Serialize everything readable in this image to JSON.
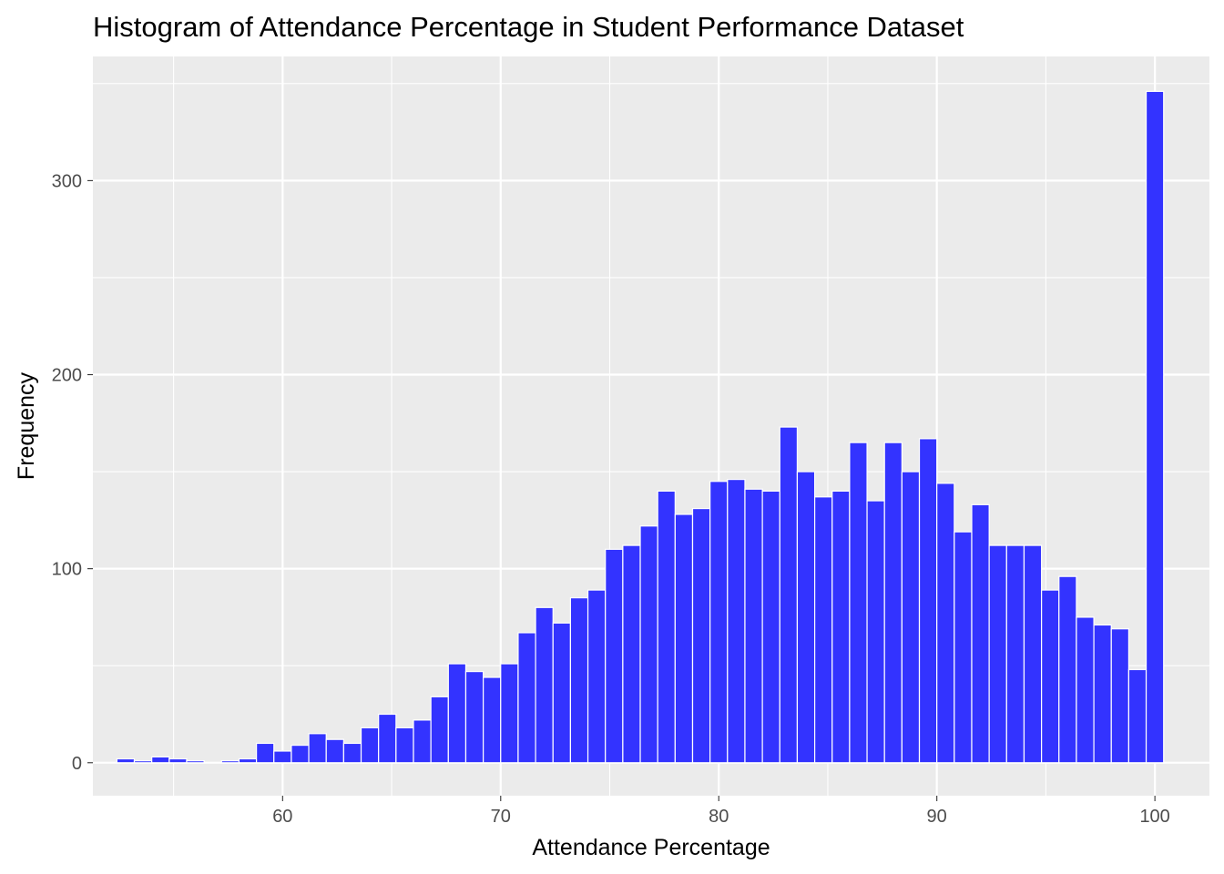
{
  "chart_data": {
    "type": "bar",
    "title": "Histogram of Attendance Percentage in Student Performance Dataset",
    "xlabel": "Attendance Percentage",
    "ylabel": "Frequency",
    "xlim": [
      51.3,
      102.5
    ],
    "ylim": [
      -17,
      364
    ],
    "x_ticks": [
      60,
      70,
      80,
      90,
      100
    ],
    "y_ticks": [
      0,
      100,
      200,
      300
    ],
    "bin_width": 0.8,
    "bin_centers": [
      52.8,
      53.6,
      54.4,
      55.2,
      56.0,
      56.8,
      57.6,
      58.4,
      59.2,
      60.0,
      60.8,
      61.6,
      62.4,
      63.2,
      64.0,
      64.8,
      65.6,
      66.4,
      67.2,
      68.0,
      68.8,
      69.6,
      70.4,
      71.2,
      72.0,
      72.8,
      73.6,
      74.4,
      75.2,
      76.0,
      76.8,
      77.6,
      78.4,
      79.2,
      80.0,
      80.8,
      81.6,
      82.4,
      83.2,
      84.0,
      84.8,
      85.6,
      86.4,
      87.2,
      88.0,
      88.8,
      89.6,
      90.4,
      91.2,
      92.0,
      92.8,
      93.6,
      94.4,
      95.2,
      96.0,
      96.8,
      97.6,
      98.4,
      99.2,
      100.0
    ],
    "values": [
      2,
      1,
      3,
      2,
      1,
      0,
      1,
      2,
      10,
      6,
      9,
      15,
      12,
      10,
      18,
      25,
      18,
      22,
      34,
      51,
      47,
      44,
      51,
      67,
      80,
      72,
      85,
      89,
      110,
      112,
      122,
      140,
      128,
      131,
      145,
      146,
      141,
      140,
      173,
      150,
      137,
      140,
      165,
      135,
      165,
      150,
      167,
      144,
      119,
      133,
      112,
      112,
      112,
      89,
      96,
      75,
      71,
      69,
      48,
      346
    ],
    "bar_color": "#3333ff",
    "bar_outline": "#ffffff",
    "panel_background": "#ebebeb",
    "grid_color": "#ffffff",
    "grid": true,
    "legend": "none"
  }
}
